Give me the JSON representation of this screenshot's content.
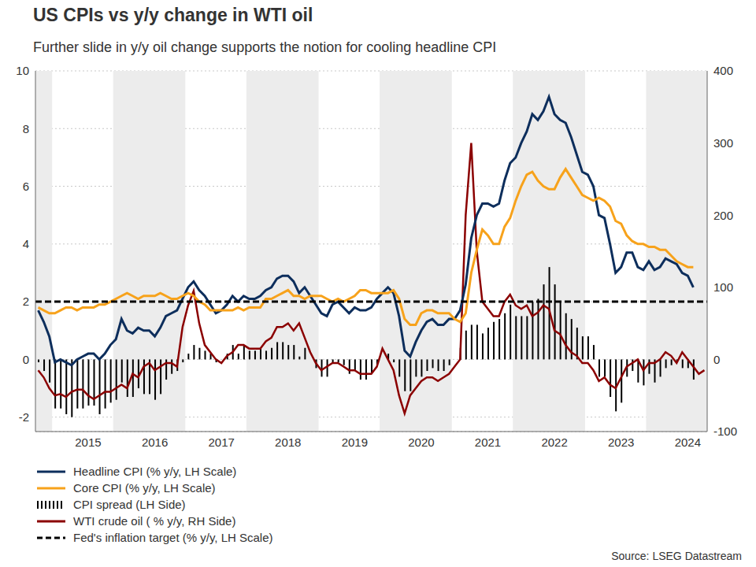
{
  "chart_data": {
    "type": "line",
    "title": "US CPIs vs y/y change in WTI oil",
    "subtitle": "Further slide in y/y oil change supports the notion for cooling headline CPI",
    "source": "Source: LSEG Datastream",
    "grid": true,
    "legend": "bottom",
    "categories": [
      null,
      null,
      null,
      null,
      null,
      null,
      null,
      null,
      null,
      "2015",
      null,
      null,
      null,
      null,
      null,
      null,
      null,
      null,
      null,
      null,
      null,
      "2016",
      null,
      null,
      null,
      null,
      null,
      null,
      null,
      null,
      null,
      null,
      null,
      "2017",
      null,
      null,
      null,
      null,
      null,
      null,
      null,
      null,
      null,
      null,
      null,
      "2018",
      null,
      null,
      null,
      null,
      null,
      null,
      null,
      null,
      null,
      null,
      null,
      "2019",
      null,
      null,
      null,
      null,
      null,
      null,
      null,
      null,
      null,
      null,
      null,
      "2020",
      null,
      null,
      null,
      null,
      null,
      null,
      null,
      null,
      null,
      null,
      null,
      "2021",
      null,
      null,
      null,
      null,
      null,
      null,
      null,
      null,
      null,
      null,
      null,
      "2022",
      null,
      null,
      null,
      null,
      null,
      null,
      null,
      null,
      null,
      null,
      null,
      "2023",
      null,
      null,
      null,
      null,
      null,
      null,
      null,
      null,
      null,
      null,
      null,
      "2024",
      null,
      null,
      null
    ],
    "ylim": [
      -2.5,
      10
    ],
    "yticks": [
      -2,
      0,
      2,
      4,
      6,
      8,
      10
    ],
    "y2lim": [
      -100,
      400
    ],
    "y2ticks": [
      -100,
      0,
      100,
      200,
      300,
      400
    ],
    "series": [
      {
        "name": "Headline CPI (% y/y, LH Scale)",
        "type": "line",
        "color": "#0d2e5c",
        "values": [
          1.7,
          1.3,
          0.8,
          -0.1,
          0.0,
          -0.1,
          -0.2,
          0.0,
          0.1,
          0.2,
          0.2,
          0.0,
          0.2,
          0.5,
          0.7,
          1.4,
          1.0,
          0.9,
          1.1,
          1.0,
          1.0,
          0.8,
          1.1,
          1.5,
          1.6,
          1.7,
          2.1,
          2.5,
          2.7,
          2.4,
          2.2,
          1.9,
          1.6,
          1.7,
          1.9,
          2.2,
          2.0,
          2.2,
          2.1,
          2.1,
          2.2,
          2.4,
          2.5,
          2.8,
          2.9,
          2.9,
          2.7,
          2.3,
          2.5,
          2.2,
          1.9,
          1.6,
          1.5,
          1.9,
          2.0,
          1.8,
          1.6,
          1.8,
          1.7,
          1.7,
          1.8,
          2.1,
          2.3,
          2.5,
          2.3,
          1.5,
          0.3,
          0.1,
          0.6,
          1.0,
          1.3,
          1.4,
          1.2,
          1.2,
          1.4,
          1.4,
          1.7,
          2.6,
          4.2,
          5.0,
          5.4,
          5.4,
          5.3,
          5.4,
          6.2,
          6.8,
          7.0,
          7.5,
          7.9,
          8.5,
          8.3,
          8.6,
          9.1,
          8.5,
          8.3,
          8.2,
          7.7,
          7.1,
          6.5,
          6.4,
          6.0,
          5.0,
          4.9,
          4.0,
          3.0,
          3.2,
          3.7,
          3.7,
          3.2,
          3.1,
          3.4,
          3.1,
          3.2,
          3.5,
          3.4,
          3.3,
          3.0,
          2.9,
          2.5,
          null,
          null
        ]
      },
      {
        "name": "Core CPI (% y/y, LH Scale)",
        "type": "line",
        "color": "#f7a21b",
        "values": [
          1.8,
          1.7,
          1.6,
          1.6,
          1.7,
          1.8,
          1.8,
          1.7,
          1.8,
          1.8,
          1.8,
          1.9,
          1.9,
          2.0,
          2.1,
          2.2,
          2.3,
          2.2,
          2.1,
          2.2,
          2.2,
          2.2,
          2.3,
          2.2,
          2.1,
          2.1,
          2.2,
          2.3,
          2.2,
          2.0,
          1.9,
          1.7,
          1.7,
          1.7,
          1.7,
          1.7,
          1.8,
          1.7,
          1.8,
          1.8,
          1.8,
          2.1,
          2.1,
          2.2,
          2.3,
          2.4,
          2.2,
          2.2,
          2.1,
          2.2,
          2.2,
          2.2,
          2.1,
          2.0,
          2.1,
          2.0,
          2.1,
          2.2,
          2.4,
          2.4,
          2.3,
          2.3,
          2.3,
          2.3,
          2.4,
          2.1,
          1.4,
          1.2,
          1.2,
          1.6,
          1.7,
          1.7,
          1.6,
          1.6,
          1.6,
          1.4,
          1.3,
          1.6,
          3.0,
          3.8,
          4.5,
          4.3,
          4.0,
          4.0,
          4.6,
          4.9,
          5.5,
          6.0,
          6.4,
          6.5,
          6.2,
          6.0,
          5.9,
          5.9,
          6.3,
          6.6,
          6.3,
          6.0,
          5.7,
          5.6,
          5.5,
          5.6,
          5.5,
          5.3,
          4.8,
          4.7,
          4.3,
          4.1,
          4.0,
          4.0,
          3.9,
          3.9,
          3.8,
          3.8,
          3.6,
          3.4,
          3.3,
          3.2,
          3.2,
          null,
          null
        ]
      },
      {
        "name": "CPI spread (LH Side)",
        "type": "bar",
        "color": "#000000",
        "values": [
          -0.1,
          -0.4,
          -0.8,
          -1.7,
          -1.7,
          -1.9,
          -2.0,
          -1.7,
          -1.7,
          -1.6,
          -1.6,
          -1.9,
          -1.7,
          -1.5,
          -1.4,
          -0.8,
          -1.3,
          -1.3,
          -1.0,
          -1.2,
          -1.2,
          -1.4,
          -1.2,
          -0.7,
          -0.5,
          -0.4,
          -0.1,
          0.2,
          0.5,
          0.4,
          0.3,
          0.2,
          -0.1,
          0.0,
          0.2,
          0.5,
          0.2,
          0.5,
          0.3,
          0.3,
          0.4,
          0.3,
          0.4,
          0.6,
          0.6,
          0.5,
          0.5,
          0.1,
          0.4,
          0.0,
          -0.3,
          -0.6,
          -0.6,
          -0.1,
          -0.1,
          -0.2,
          -0.5,
          -0.4,
          -0.7,
          -0.7,
          -0.5,
          -0.2,
          0.0,
          0.2,
          -0.1,
          -0.6,
          -1.1,
          -1.1,
          -0.6,
          -0.6,
          -0.4,
          -0.3,
          -0.4,
          -0.4,
          -0.2,
          0.0,
          0.4,
          1.0,
          1.2,
          1.2,
          0.9,
          1.1,
          1.3,
          1.4,
          1.6,
          1.9,
          1.5,
          1.5,
          1.5,
          2.0,
          2.1,
          2.6,
          3.2,
          2.6,
          2.0,
          1.6,
          1.4,
          1.1,
          0.8,
          0.8,
          0.5,
          -0.6,
          -0.6,
          -1.3,
          -1.8,
          -1.5,
          -0.6,
          -0.4,
          -0.8,
          -0.9,
          -0.5,
          -0.8,
          -0.6,
          -0.3,
          -0.2,
          -0.1,
          -0.3,
          -0.3,
          -0.7,
          null,
          null
        ]
      },
      {
        "name": "WTI crude oil ( % y/y, RH Side)",
        "type": "line",
        "color": "#8b0000",
        "axis": "y2",
        "values": [
          -15,
          -25,
          -40,
          -50,
          -48,
          -52,
          -45,
          -42,
          -42,
          -50,
          -55,
          -50,
          -45,
          -45,
          -40,
          -35,
          -40,
          -20,
          -25,
          -10,
          -5,
          -15,
          -10,
          -5,
          -5,
          -10,
          45,
          75,
          95,
          50,
          20,
          10,
          0,
          -5,
          5,
          10,
          20,
          20,
          15,
          15,
          15,
          25,
          30,
          45,
          45,
          50,
          40,
          50,
          30,
          10,
          -5,
          -15,
          -10,
          -5,
          -5,
          -10,
          -15,
          -15,
          -20,
          -20,
          -20,
          -10,
          15,
          0,
          -15,
          -50,
          -75,
          -50,
          -40,
          -30,
          -25,
          -25,
          -30,
          -25,
          -20,
          -10,
          0,
          200,
          300,
          150,
          80,
          70,
          60,
          60,
          80,
          90,
          75,
          70,
          75,
          60,
          65,
          75,
          70,
          40,
          35,
          20,
          10,
          5,
          -5,
          -5,
          -15,
          -30,
          -25,
          -35,
          -40,
          -25,
          -10,
          -5,
          0,
          -15,
          -5,
          -5,
          0,
          10,
          5,
          -5,
          10,
          0,
          -10,
          -20,
          -15
        ]
      }
    ],
    "reference_lines": [
      {
        "name": "Fed's inflation target (% y/y, LH Scale)",
        "value": 2,
        "color": "#000000",
        "line_style": "dashed"
      }
    ]
  }
}
